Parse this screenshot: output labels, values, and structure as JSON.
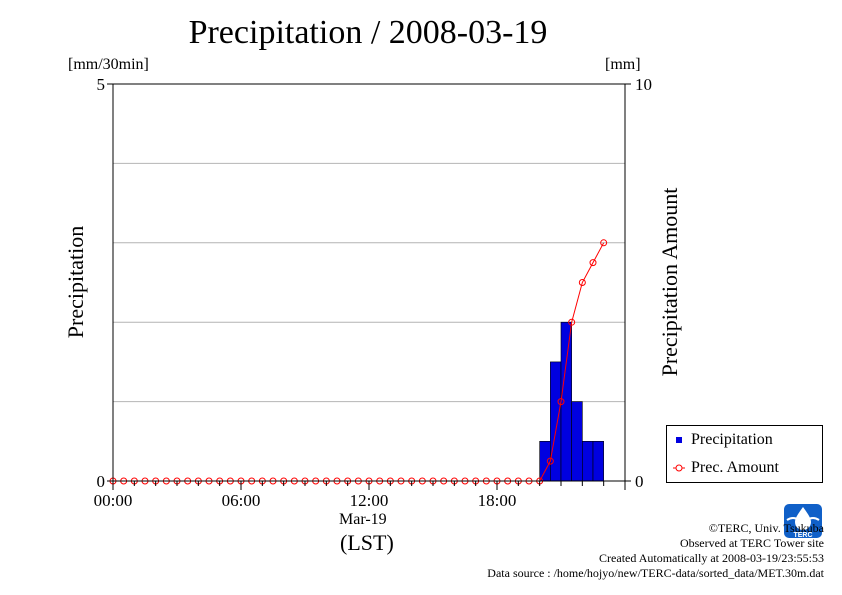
{
  "title": "Precipitation / 2008-03-19",
  "left_unit": "[mm/30min]",
  "right_unit": "[mm]",
  "left_axis_label": "Precipitation",
  "right_axis_label": "Precipitation Amount",
  "x_date_label": "Mar-19",
  "x_zone_label": "(LST)",
  "legend": {
    "items": [
      {
        "label": "Precipitation",
        "color": "#0000e0",
        "symbol": "square"
      },
      {
        "label": "Prec. Amount",
        "color": "#ff0000",
        "symbol": "circle"
      }
    ]
  },
  "credits": [
    "©TERC, Univ. Tsukuba",
    "Observed at TERC Tower site",
    "Created Automatically at 2008-03-19/23:55:53",
    "Data source : /home/hojyo/new/TERC-data/sorted_data/MET.30m.dat"
  ],
  "logo_text": "TERC",
  "chart_data": {
    "type": "bar",
    "title": "Precipitation / 2008-03-19",
    "xlabel": "Mar-19",
    "x_range_hours": [
      0,
      24
    ],
    "x_ticks": [
      {
        "hour": 0,
        "label": "00:00"
      },
      {
        "hour": 6,
        "label": "06:00"
      },
      {
        "hour": 12,
        "label": "12:00"
      },
      {
        "hour": 18,
        "label": "18:00"
      }
    ],
    "left_axis": {
      "label": "Precipitation",
      "unit": "[mm/30min]",
      "ylim": [
        0,
        5
      ],
      "tick_labels": [
        "0",
        "5"
      ]
    },
    "right_axis": {
      "label": "Precipitation Amount",
      "unit": "[mm]",
      "ylim": [
        0,
        10
      ],
      "tick_labels": [
        "0",
        "10"
      ]
    },
    "grid": true,
    "gridline_values_left": [
      1,
      2,
      3,
      4
    ],
    "series": [
      {
        "name": "Precipitation",
        "type": "bar",
        "axis": "left",
        "color": "#0000e0",
        "bars": [
          {
            "start_hour": 20.0,
            "end_hour": 20.5,
            "value": 0.5
          },
          {
            "start_hour": 20.5,
            "end_hour": 21.0,
            "value": 1.5
          },
          {
            "start_hour": 21.0,
            "end_hour": 21.5,
            "value": 2.0
          },
          {
            "start_hour": 21.5,
            "end_hour": 22.0,
            "value": 1.0
          },
          {
            "start_hour": 22.0,
            "end_hour": 22.5,
            "value": 0.5
          },
          {
            "start_hour": 22.5,
            "end_hour": 23.0,
            "value": 0.5
          }
        ]
      },
      {
        "name": "Prec. Amount",
        "type": "line",
        "axis": "right",
        "color": "#ff0000",
        "x_hours": [
          0,
          0.5,
          1,
          1.5,
          2,
          2.5,
          3,
          3.5,
          4,
          4.5,
          5,
          5.5,
          6,
          6.5,
          7,
          7.5,
          8,
          8.5,
          9,
          9.5,
          10,
          10.5,
          11,
          11.5,
          12,
          12.5,
          13,
          13.5,
          14,
          14.5,
          15,
          15.5,
          16,
          16.5,
          17,
          17.5,
          18,
          18.5,
          19,
          19.5,
          20,
          20.5,
          21,
          21.5,
          22,
          22.5,
          23
        ],
        "values": [
          0,
          0,
          0,
          0,
          0,
          0,
          0,
          0,
          0,
          0,
          0,
          0,
          0,
          0,
          0,
          0,
          0,
          0,
          0,
          0,
          0,
          0,
          0,
          0,
          0,
          0,
          0,
          0,
          0,
          0,
          0,
          0,
          0,
          0,
          0,
          0,
          0,
          0,
          0,
          0,
          0,
          0.5,
          2,
          4,
          5,
          5.5,
          6
        ]
      }
    ]
  }
}
